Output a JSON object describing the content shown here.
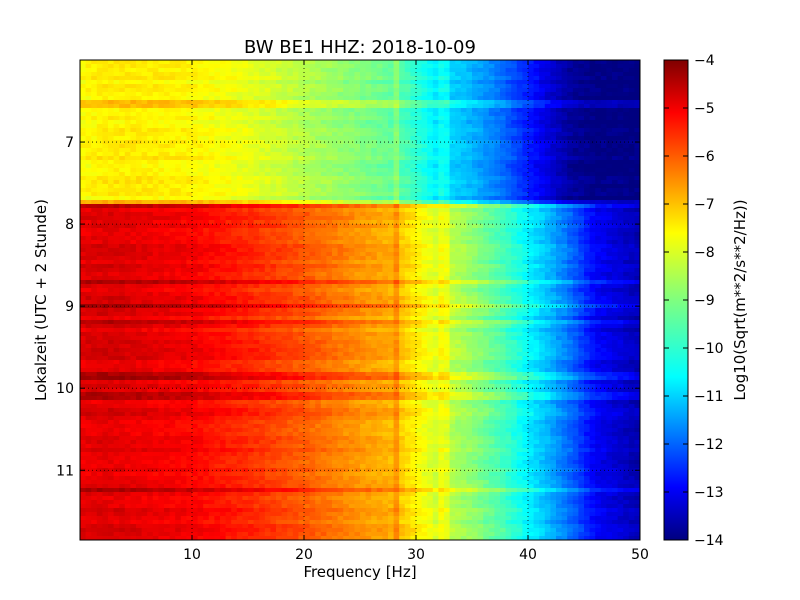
{
  "chart_data": {
    "type": "heatmap",
    "title": "BW BE1 HHZ: 2018-10-09",
    "xlabel": "Frequency [Hz]",
    "ylabel": "Lokalzeit (UTC + 2 Stunde)",
    "xlim": [
      0,
      50
    ],
    "ylim": [
      6.0,
      11.85
    ],
    "x_ticks": [
      10,
      20,
      30,
      40,
      50
    ],
    "y_ticks": [
      7,
      8,
      9,
      10,
      11
    ],
    "grid": true,
    "colorbar": {
      "label": "Log10(Sqrt(m**2/s**2/Hz))",
      "range": [
        -14,
        -4
      ],
      "ticks": [
        -4,
        -5,
        -6,
        -7,
        -8,
        -9,
        -10,
        -11,
        -12,
        -13,
        -14
      ],
      "colormap": "jet"
    },
    "regime_change_time": 7.75,
    "profile_frequencies": [
      0,
      2,
      5,
      10,
      15,
      20,
      25,
      28,
      30,
      32,
      35,
      38,
      40,
      42,
      44,
      46,
      50
    ],
    "profile_quiet_before": [
      -7.8,
      -7.6,
      -7.6,
      -7.7,
      -8.0,
      -8.5,
      -9.0,
      -9.3,
      -9.8,
      -10.5,
      -11.0,
      -11.8,
      -12.5,
      -13.2,
      -13.8,
      -14.0,
      -14.0
    ],
    "profile_active_after": [
      -5.0,
      -4.9,
      -5.0,
      -5.2,
      -5.6,
      -6.1,
      -6.7,
      -7.0,
      -7.6,
      -8.2,
      -8.8,
      -9.6,
      -10.3,
      -11.0,
      -11.8,
      -12.8,
      -13.5
    ],
    "bright_lines_time": [
      6.55,
      7.75,
      8.7,
      9.0,
      9.2,
      9.85,
      10.1,
      11.25
    ]
  }
}
